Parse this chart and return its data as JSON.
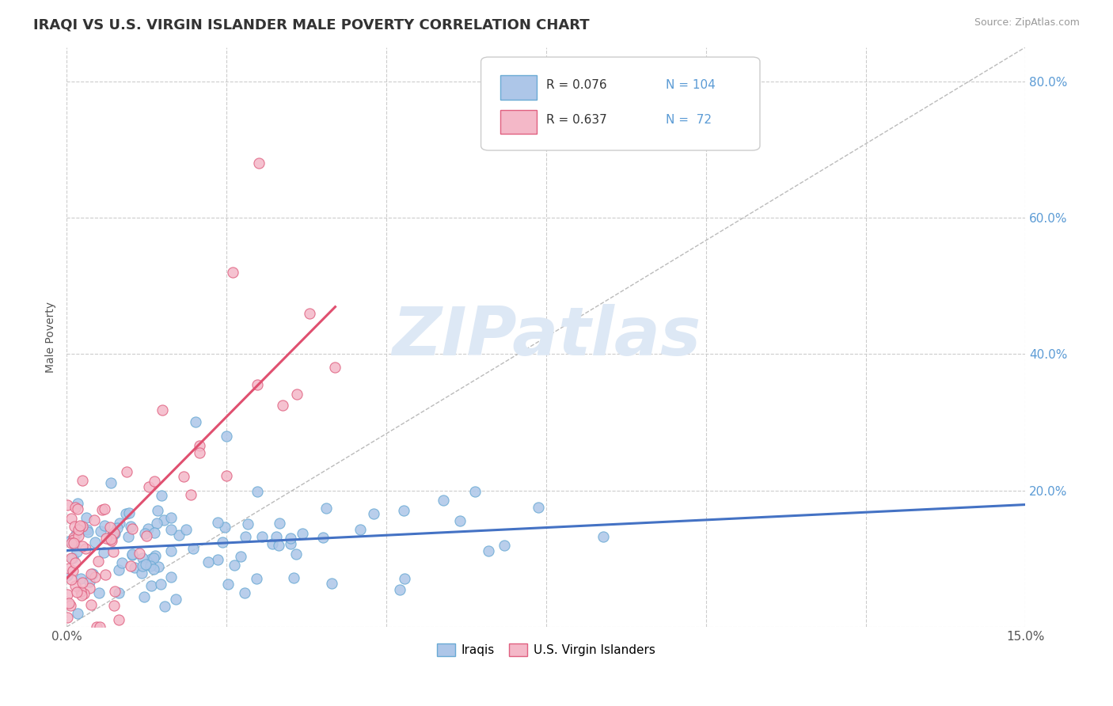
{
  "title": "IRAQI VS U.S. VIRGIN ISLANDER MALE POVERTY CORRELATION CHART",
  "source": "Source: ZipAtlas.com",
  "ylabel": "Male Poverty",
  "xlim": [
    0.0,
    0.15
  ],
  "ylim": [
    0.0,
    0.85
  ],
  "xticks": [
    0.0,
    0.025,
    0.05,
    0.075,
    0.1,
    0.125,
    0.15
  ],
  "xticklabels": [
    "0.0%",
    "",
    "",
    "",
    "",
    "",
    "15.0%"
  ],
  "yticks": [
    0.0,
    0.2,
    0.4,
    0.6,
    0.8
  ],
  "yticklabels_right": [
    "",
    "20.0%",
    "40.0%",
    "60.0%",
    "80.0%"
  ],
  "background_color": "#ffffff",
  "grid_color": "#cccccc",
  "iraqi_color": "#adc6e8",
  "virgin_color": "#f4b8c8",
  "iraqi_edge_color": "#6aaad4",
  "virgin_edge_color": "#e06080",
  "iraqi_line_color": "#4472c4",
  "virgin_line_color": "#e05070",
  "ref_line_color": "#bbbbbb",
  "watermark_color": "#dde8f5",
  "legend_R1": "R = 0.076",
  "legend_N1": "N = 104",
  "legend_R2": "R = 0.637",
  "legend_N2": "N =  72",
  "legend_label1": "Iraqis",
  "legend_label2": "U.S. Virgin Islanders",
  "title_fontsize": 13,
  "axis_label_fontsize": 10,
  "tick_fontsize": 11,
  "n_iraqi": 104,
  "n_virgin": 72
}
